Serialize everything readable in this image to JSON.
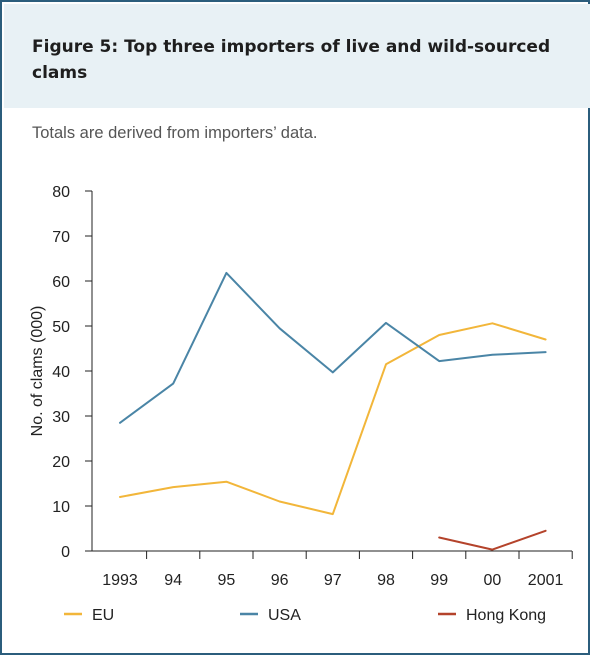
{
  "header": {
    "title": "Figure 5: Top three importers of live and wild-sourced clams",
    "subtitle": "Totals are derived from importers’ data."
  },
  "chart_data": {
    "type": "line",
    "title": "Figure 5: Top three importers of live and wild-sourced clams",
    "subtitle": "Totals are derived from importers’ data.",
    "xlabel": "",
    "ylabel": "No. of clams (000)",
    "categories": [
      "1993",
      "94",
      "95",
      "96",
      "97",
      "98",
      "99",
      "00",
      "2001"
    ],
    "ylim": [
      0,
      80
    ],
    "yticks": [
      0,
      10,
      20,
      30,
      40,
      50,
      60,
      70,
      80
    ],
    "grid": false,
    "legend_position": "bottom",
    "series": [
      {
        "name": "EU",
        "color": "#f2b63a",
        "values": [
          12,
          14.2,
          15.4,
          11,
          8.2,
          41.5,
          48,
          50.6,
          47
        ]
      },
      {
        "name": "USA",
        "color": "#4a85a6",
        "values": [
          28.5,
          37.2,
          61.8,
          49.5,
          39.7,
          50.7,
          42.2,
          43.6,
          44.2
        ]
      },
      {
        "name": "Hong Kong",
        "color": "#b4432b",
        "values": [
          null,
          null,
          null,
          null,
          null,
          null,
          3,
          0.3,
          4.5
        ]
      }
    ]
  }
}
